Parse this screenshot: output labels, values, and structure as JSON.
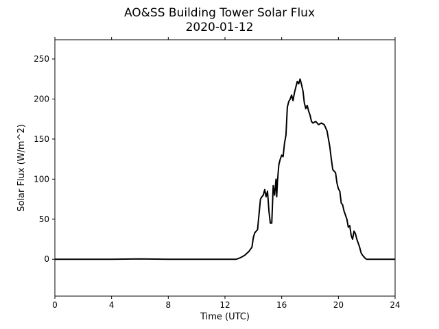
{
  "chart_data": {
    "type": "line",
    "title": "AO&SS Building Tower Solar Flux",
    "subtitle": "2020-01-12",
    "xlabel": "Time (UTC)",
    "ylabel": "Solar Flux (W/m^2)",
    "xlim": [
      0,
      24
    ],
    "ylim": [
      -46,
      274
    ],
    "x_ticks": [
      0,
      4,
      8,
      12,
      16,
      20,
      24
    ],
    "y_ticks": [
      0,
      50,
      100,
      150,
      200,
      250
    ],
    "grid": false,
    "line_color": "#000000",
    "series": [
      {
        "x": [
          0,
          4,
          6,
          8,
          10,
          12,
          12.8,
          13.1,
          13.4,
          13.7,
          13.9,
          14.0,
          14.1,
          14.3,
          14.5,
          14.6,
          14.7,
          14.8,
          14.9,
          15.0,
          15.1,
          15.2,
          15.3,
          15.4,
          15.5,
          15.6,
          15.65,
          15.7,
          15.8,
          15.9,
          16.0,
          16.1,
          16.2,
          16.3,
          16.4,
          16.5,
          16.6,
          16.7,
          16.8,
          16.9,
          17.0,
          17.1,
          17.2,
          17.3,
          17.4,
          17.5,
          17.6,
          17.7,
          17.8,
          17.9,
          18.0,
          18.1,
          18.2,
          18.4,
          18.6,
          18.8,
          19.0,
          19.2,
          19.4,
          19.5,
          19.6,
          19.7,
          19.8,
          19.9,
          20.0,
          20.1,
          20.2,
          20.3,
          20.4,
          20.5,
          20.6,
          20.7,
          20.8,
          20.9,
          21.0,
          21.1,
          21.2,
          21.3,
          21.4,
          21.5,
          21.6,
          21.7,
          21.8,
          21.9,
          22.0,
          22.2,
          22.4,
          22.6,
          22.8,
          23.0,
          23.5,
          24
        ],
        "y": [
          0,
          0,
          0.5,
          0,
          0,
          0,
          0,
          2,
          5,
          10,
          15,
          27,
          33,
          37,
          75,
          78,
          80,
          87,
          78,
          85,
          60,
          45,
          45,
          92,
          80,
          100,
          78,
          97,
          118,
          125,
          130,
          128,
          145,
          155,
          190,
          197,
          200,
          205,
          198,
          208,
          215,
          222,
          219,
          225,
          218,
          210,
          195,
          188,
          192,
          185,
          180,
          172,
          170,
          172,
          168,
          170,
          168,
          160,
          140,
          125,
          112,
          110,
          108,
          95,
          88,
          85,
          70,
          68,
          60,
          55,
          50,
          40,
          42,
          30,
          25,
          35,
          32,
          25,
          20,
          15,
          8,
          5,
          3,
          1,
          0,
          0,
          0,
          0,
          0,
          0,
          0,
          0
        ]
      }
    ]
  }
}
